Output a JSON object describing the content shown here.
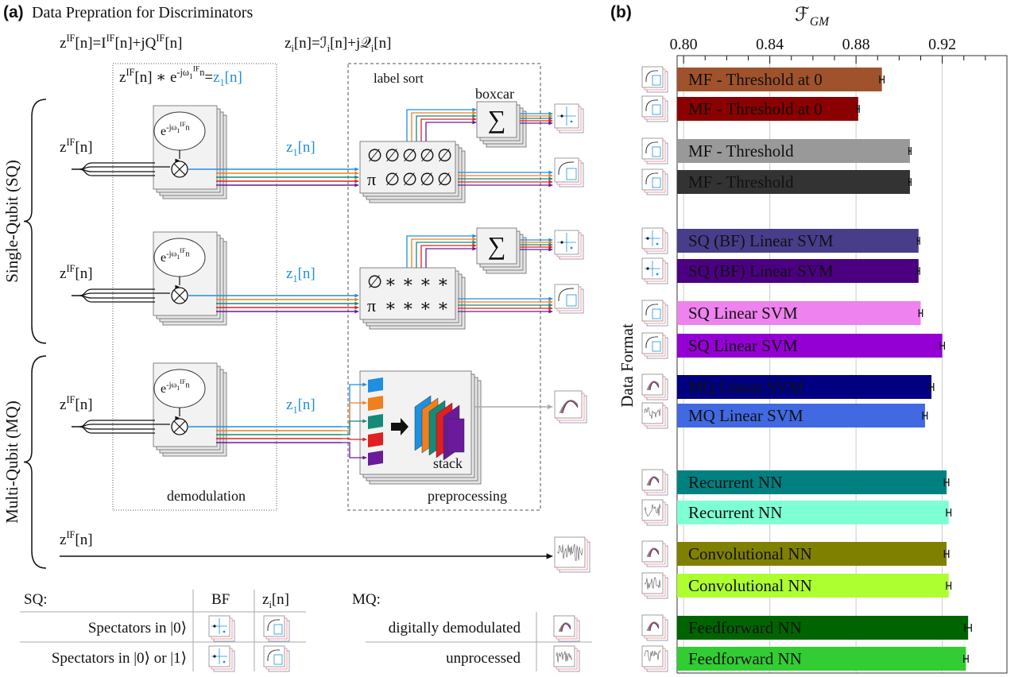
{
  "panel_a": {
    "label": "(a)",
    "title": "Data Prepration for Discriminators",
    "eq_signal": [
      {
        "text": "z"
      },
      {
        "sup": "IF"
      },
      {
        "text": "[n]=I"
      },
      {
        "sup": "IF"
      },
      {
        "text": "[n]+jQ"
      },
      {
        "sup": "IF"
      },
      {
        "text": "[n]"
      }
    ],
    "eq_iq": [
      {
        "text": "z"
      },
      {
        "sub": "i"
      },
      {
        "text": "[n]=ℐ"
      },
      {
        "sub": "i"
      },
      {
        "text": "[n]+j𝒬"
      },
      {
        "sub": "i"
      },
      {
        "text": "[n]"
      }
    ],
    "eq_demod": [
      {
        "text": "z"
      },
      {
        "sup": "IF"
      },
      {
        "text": "[n] ∗ e"
      },
      {
        "sup": "-jω"
      },
      {
        "supsub": "1"
      },
      {
        "supsup": "IF"
      },
      {
        "sup": "n"
      },
      {
        "text": "="
      }
    ],
    "eq_demod_result": [
      {
        "text": "z"
      },
      {
        "sub": "1"
      },
      {
        "text": "[n]"
      }
    ],
    "signal_label": [
      {
        "text": "z"
      },
      {
        "sup": "IF"
      },
      {
        "text": "[n]"
      }
    ],
    "osc_label": [
      {
        "text": "e"
      },
      {
        "sup": "-jω"
      },
      {
        "supsub": "1"
      },
      {
        "supsup": "IF"
      },
      {
        "sup": "n"
      }
    ],
    "single_qubit": "Single-Qubit (SQ)",
    "multi_qubit": "Multi-Qubit (MQ)",
    "label_sort": "label sort",
    "boxcar": "boxcar",
    "sum_symbol": "∑",
    "demodulation": "demodulation",
    "preprocessing": "preprocessing",
    "stack": "stack",
    "sort_rows_zi": [
      [
        "∅",
        "∅",
        "∅",
        "∅",
        "∅"
      ],
      [
        "π",
        "∅",
        "∅",
        "∅",
        "∅"
      ]
    ],
    "sort_rows_bf": [
      [
        "∅",
        "∗",
        "∗",
        "∗",
        "∗"
      ],
      [
        "π",
        "∗",
        "∗",
        "∗",
        "∗"
      ]
    ],
    "channel_colors": [
      "#1f8fe0",
      "#f07f1f",
      "#168a7a",
      "#e02020",
      "#6a1a9a"
    ],
    "legend": {
      "sq_title": "SQ:",
      "col_bf": "BF",
      "col_zi": [
        {
          "text": "z"
        },
        {
          "sub": "i"
        },
        {
          "text": "[n]"
        }
      ],
      "rows": [
        "Spectators in |0⟩",
        "Spectators in |0⟩ or |1⟩"
      ],
      "mq_title": "MQ:",
      "mq_rows": [
        "digitally demodulated",
        "unprocessed"
      ]
    }
  },
  "chart_data": {
    "type": "bar",
    "orientation": "horizontal",
    "label": "(b)",
    "xlabel": [
      {
        "text": "ℱ"
      },
      {
        "sub": "GM"
      }
    ],
    "ylabel": "Data Format",
    "categories": [
      "MF - Threshold at 0",
      "MF - Threshold at 0",
      "MF - Threshold",
      "MF - Threshold",
      "SQ (BF) Linear SVM",
      "SQ (BF) Linear SVM",
      "SQ Linear SVM",
      "SQ Linear SVM",
      "MQ Linear SVM",
      "MQ Linear SVM",
      "Recurrent NN",
      "Recurrent NN",
      "Convolutional NN",
      "Convolutional NN",
      "Feedforward NN",
      "Feedforward NN"
    ],
    "values": [
      0.892,
      0.881,
      0.905,
      0.905,
      0.909,
      0.909,
      0.91,
      0.92,
      0.915,
      0.912,
      0.922,
      0.923,
      0.922,
      0.923,
      0.932,
      0.931
    ],
    "errors": [
      0.001,
      0.0005,
      0.0005,
      0.0005,
      0.0005,
      0.0005,
      0.0008,
      0.001,
      0.001,
      0.001,
      0.001,
      0.001,
      0.001,
      0.001,
      0.0015,
      0.001
    ],
    "colors": [
      "#a0522d",
      "#8b0000",
      "#999999",
      "#333333",
      "#483d8b",
      "#4b0082",
      "#ee82ee",
      "#9400d3",
      "#000080",
      "#4169e1",
      "#008080",
      "#7fffd4",
      "#808000",
      "#adff2f",
      "#006400",
      "#32cd32"
    ],
    "xlim": [
      0.797,
      0.95
    ],
    "xticks": [
      {
        "value": 0.8,
        "label": "0.80"
      },
      {
        "value": 0.84,
        "label": "0.84"
      },
      {
        "value": 0.88,
        "label": "0.88"
      },
      {
        "value": 0.92,
        "label": "0.92"
      }
    ],
    "xticks_minor": [
      0.81,
      0.82,
      0.83,
      0.85,
      0.86,
      0.87,
      0.89,
      0.9,
      0.91,
      0.93,
      0.94
    ],
    "grid": true
  }
}
